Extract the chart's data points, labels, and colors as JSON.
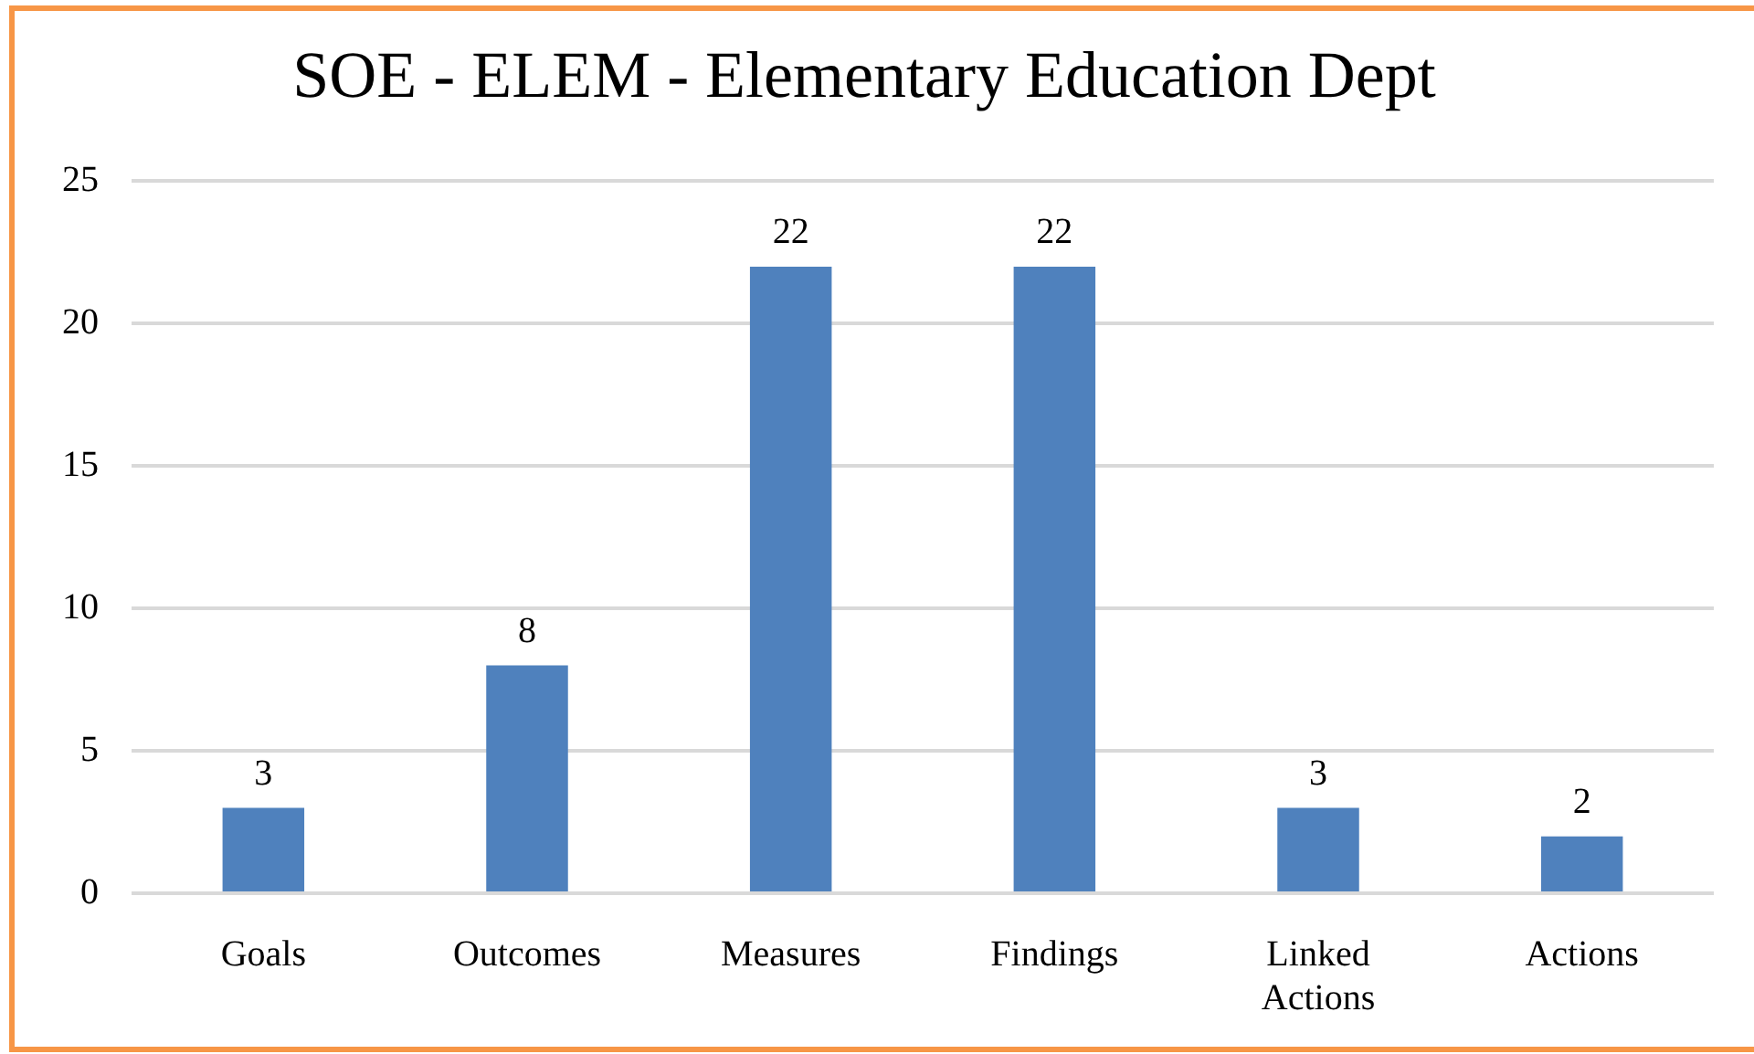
{
  "chart_data": {
    "type": "bar",
    "title": "SOE - ELEM - Elementary Education Dept",
    "categories": [
      "Goals",
      "Outcomes",
      "Measures",
      "Findings",
      "Linked Actions",
      "Actions"
    ],
    "values": [
      3,
      8,
      22,
      22,
      3,
      2
    ],
    "color": "#4f81bd",
    "ylim": [
      0,
      25
    ],
    "yticks": [
      0,
      5,
      10,
      15,
      20,
      25
    ],
    "grid": "y",
    "legend": false,
    "data_labels": true
  }
}
